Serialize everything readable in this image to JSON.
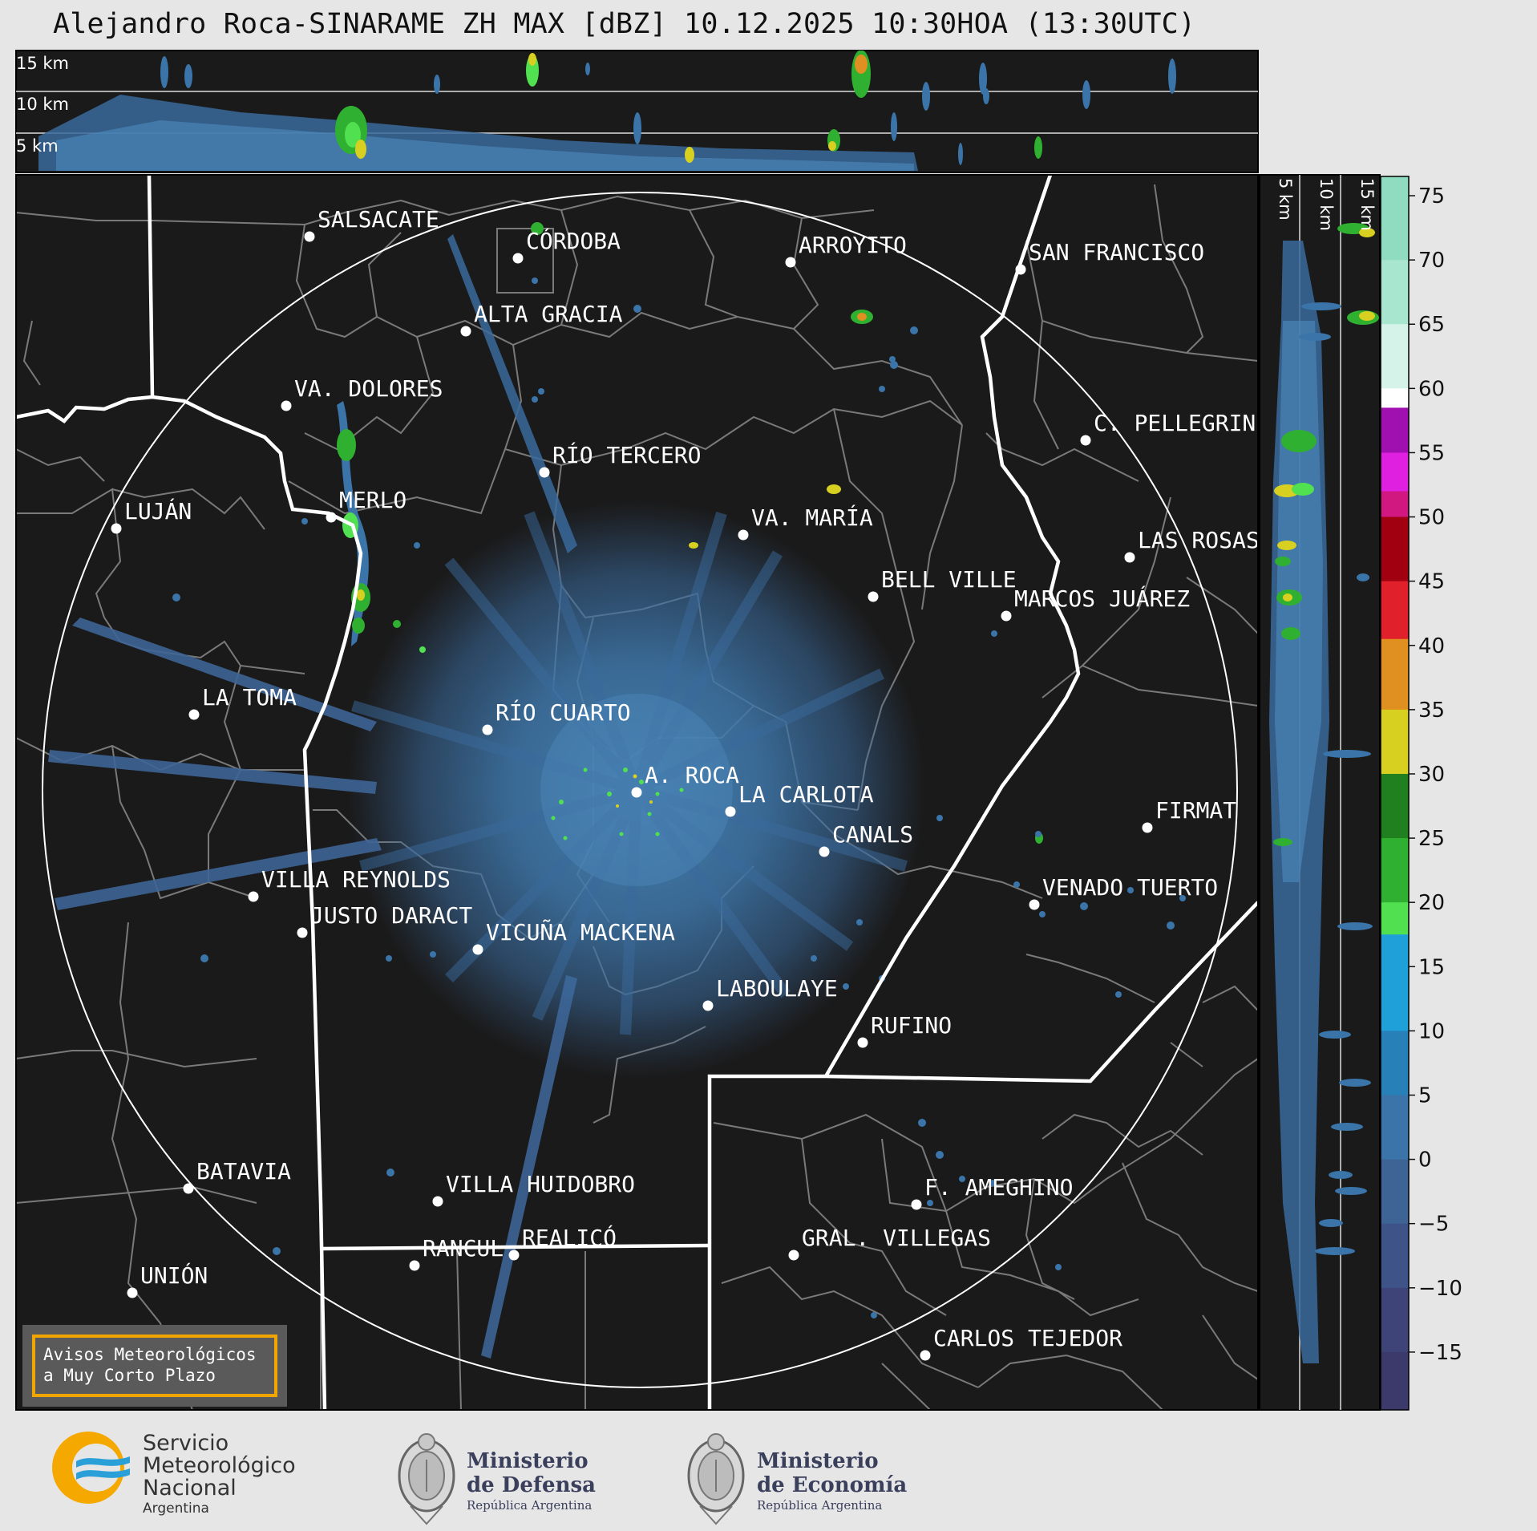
{
  "title": "Alejandro Roca-SINARAME ZH MAX [dBZ] 10.12.2025 10:30HOA (13:30UTC)",
  "top_panel": {
    "altitude_labels": [
      "15 km",
      "10 km",
      "5 km"
    ]
  },
  "side_panel": {
    "altitude_labels": [
      "5 km",
      "10 km",
      "15 km"
    ]
  },
  "colorbar": {
    "unit": "dBZ",
    "ticks": [
      "75",
      "70",
      "65",
      "60",
      "55",
      "50",
      "45",
      "40",
      "35",
      "30",
      "25",
      "20",
      "15",
      "10",
      "5",
      "0",
      "−5",
      "−10",
      "−15"
    ],
    "range": [
      -19.5,
      76.5
    ],
    "segments": [
      {
        "from": 70,
        "to": 76.5,
        "color": "#8fdcc0"
      },
      {
        "from": 65,
        "to": 70,
        "color": "#a8e6d0"
      },
      {
        "from": 60,
        "to": 65,
        "color": "#d6f3ea"
      },
      {
        "from": 58.5,
        "to": 60,
        "color": "#ffffff"
      },
      {
        "from": 55,
        "to": 58.5,
        "color": "#a010b0"
      },
      {
        "from": 52,
        "to": 55,
        "color": "#e020e0"
      },
      {
        "from": 50,
        "to": 52,
        "color": "#d01880"
      },
      {
        "from": 45,
        "to": 50,
        "color": "#a00010"
      },
      {
        "from": 40.5,
        "to": 45,
        "color": "#e0202a"
      },
      {
        "from": 35,
        "to": 40.5,
        "color": "#e09020"
      },
      {
        "from": 30,
        "to": 35,
        "color": "#d8d020"
      },
      {
        "from": 25,
        "to": 30,
        "color": "#208020"
      },
      {
        "from": 20,
        "to": 25,
        "color": "#30b030"
      },
      {
        "from": 17.5,
        "to": 20,
        "color": "#50e050"
      },
      {
        "from": 10,
        "to": 17.5,
        "color": "#20a0d8"
      },
      {
        "from": 5,
        "to": 10,
        "color": "#2880b8"
      },
      {
        "from": 0,
        "to": 5,
        "color": "#3a74a8"
      },
      {
        "from": -5,
        "to": 0,
        "color": "#3e6496"
      },
      {
        "from": -10,
        "to": -5,
        "color": "#3e5488"
      },
      {
        "from": -15,
        "to": -10,
        "color": "#3e4478"
      },
      {
        "from": -19.5,
        "to": -15,
        "color": "#3c3a6a"
      }
    ]
  },
  "cities": [
    {
      "name": "SALSACATE"
    },
    {
      "name": "CÓRDOBA"
    },
    {
      "name": "ARROYITO"
    },
    {
      "name": "SAN FRANCISCO"
    },
    {
      "name": "ALTA GRACIA"
    },
    {
      "name": "VA. DOLORES"
    },
    {
      "name": "C. PELLEGRINI"
    },
    {
      "name": "RÍO TERCERO"
    },
    {
      "name": "LUJÁN"
    },
    {
      "name": "MERLO"
    },
    {
      "name": "VA. MARÍA"
    },
    {
      "name": "LAS ROSAS"
    },
    {
      "name": "BELL VILLE"
    },
    {
      "name": "MARCOS JUÁREZ"
    },
    {
      "name": "LA TOMA"
    },
    {
      "name": "RÍO CUARTO"
    },
    {
      "name": "A. ROCA"
    },
    {
      "name": "LA CARLOTA"
    },
    {
      "name": "FIRMAT"
    },
    {
      "name": "CANALS"
    },
    {
      "name": "VILLA REYNOLDS"
    },
    {
      "name": "VENADO TUERTO"
    },
    {
      "name": "JUSTO DARACT"
    },
    {
      "name": "VICUÑA MACKENA"
    },
    {
      "name": "LABOULAYE"
    },
    {
      "name": "RUFINO"
    },
    {
      "name": "BATAVIA"
    },
    {
      "name": "VILLA HUIDOBRO"
    },
    {
      "name": "F. AMEGHINO"
    },
    {
      "name": "REALICÓ"
    },
    {
      "name": "RANCUL"
    },
    {
      "name": "GRAL. VILLEGAS"
    },
    {
      "name": "UNIÓN"
    },
    {
      "name": "CARLOS TEJEDOR"
    }
  ],
  "notice": {
    "line1": "Avisos Meteorológicos",
    "line2": "a Muy Corto Plazo"
  },
  "logos": {
    "smn": {
      "line1": "Servicio",
      "line2": "Meteorológico",
      "line3": "Nacional",
      "line4": "Argentina"
    },
    "defensa": {
      "line1": "Ministerio",
      "line2": "de Defensa",
      "line3": "República Argentina"
    },
    "economia": {
      "line1": "Ministerio",
      "line2": "de Economía",
      "line3": "República Argentina"
    }
  }
}
